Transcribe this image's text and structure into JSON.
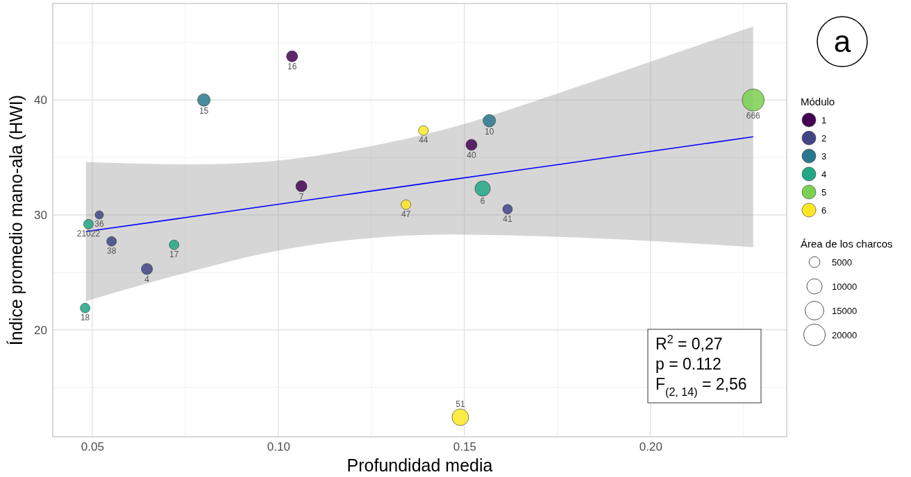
{
  "chart_data": {
    "type": "scatter",
    "xlabel": "Profundidad media",
    "ylabel": "Índice promedio mano-ala (HWI)",
    "legend_title": "Módulo",
    "legend": "right",
    "grid": true,
    "xlim": [
      0.0394,
      0.2366
    ],
    "ylim": [
      10.7,
      48.4
    ],
    "xticks": [
      0.05,
      {
        "value": 0.075,
        "label": null
      },
      {
        "value": 0.1,
        "label": "0.10"
      },
      {
        "value": 0.125,
        "label": null
      },
      0.15,
      {
        "value": 0.175,
        "label": null
      },
      {
        "value": 0.2,
        "label": "0.20"
      },
      {
        "value": 0.225,
        "label": null
      }
    ],
    "yticks": [
      {
        "value": 15,
        "label": null
      },
      20,
      {
        "value": 25,
        "label": null
      },
      30,
      {
        "value": 35,
        "label": null
      },
      40,
      {
        "value": 45,
        "label": null
      }
    ],
    "size_legend": [
      5000,
      10000,
      15000,
      20000
    ],
    "series": [
      {
        "name": "1",
        "color": "#440154",
        "x": [
          0.1037,
          0.1062,
          0.1519
        ],
        "values": [
          43.8,
          32.5,
          36.1
        ],
        "sizes": [
          5300,
          5300,
          5300
        ],
        "marker": "circle"
      },
      {
        "name": "2",
        "color": "#414487",
        "x": [
          0.0519,
          0.0552,
          0.0647,
          0.1616
        ],
        "values": [
          30.0,
          27.7,
          25.3,
          30.5
        ],
        "sizes": [
          3000,
          4000,
          5300,
          4000
        ],
        "marker": "circle"
      },
      {
        "name": "3",
        "color": "#2a788e",
        "x": [
          0.08,
          0.1567
        ],
        "values": [
          40.0,
          38.2
        ],
        "sizes": [
          6700,
          6700
        ],
        "marker": "circle"
      },
      {
        "name": "4",
        "color": "#22a884",
        "x": [
          0.049,
          0.072,
          0.0481,
          0.1549
        ],
        "values": [
          29.2,
          27.4,
          21.9,
          32.3
        ],
        "sizes": [
          4000,
          4000,
          4000,
          10000
        ],
        "marker": "circle"
      },
      {
        "name": "5",
        "color": "#7ad151",
        "x": [
          0.2276
        ],
        "values": [
          40.0
        ],
        "sizes": [
          21000
        ],
        "marker": "circle"
      },
      {
        "name": "6",
        "color": "#fde725",
        "x": [
          0.139,
          0.1343,
          0.1489
        ],
        "values": [
          37.35,
          30.9,
          12.4
        ],
        "sizes": [
          4000,
          4000,
          11900
        ],
        "marker": "circle"
      },
      {
        "type": "line",
        "color": "#0000ff",
        "x": [
          0.0483,
          0.0767,
          0.0953,
          0.1185,
          0.1465,
          0.1744,
          0.2024,
          0.2276
        ],
        "values": [
          28.55,
          29.85,
          30.71,
          31.78,
          33.07,
          34.35,
          35.64,
          36.8
        ],
        "lower": [
          22.5,
          25.1,
          26.6,
          27.8,
          28.3,
          28.1,
          27.7,
          27.2
        ],
        "upper": [
          34.6,
          34.4,
          34.6,
          35.6,
          37.6,
          40.5,
          43.6,
          46.4
        ]
      }
    ],
    "annotations": [
      "a",
      "R$^{2}$ = 0,27",
      "p = 0.112",
      "F$_{(2, 14)}$ = 2,56",
      "Área de los charcos",
      {
        "text": "16",
        "x": 0.1037,
        "y": 43.8
      },
      {
        "text": "15",
        "x": 0.08,
        "y": 40.0
      },
      {
        "text": "7",
        "x": 0.1062,
        "y": 32.5
      },
      {
        "text": "36",
        "x": 0.0519,
        "y": 30.0
      },
      {
        "text": "21022",
        "x": 0.049,
        "y": 29.2
      },
      {
        "text": "38",
        "x": 0.0552,
        "y": 27.7
      },
      {
        "text": "4",
        "x": 0.0647,
        "y": 25.3
      },
      {
        "text": "17",
        "x": 0.072,
        "y": 27.4
      },
      {
        "text": "18",
        "x": 0.0481,
        "y": 21.9
      },
      {
        "text": "44",
        "x": 0.139,
        "y": 37.35
      },
      {
        "text": "40",
        "x": 0.1519,
        "y": 36.1
      },
      {
        "text": "10",
        "x": 0.1567,
        "y": 38.2
      },
      {
        "text": "6",
        "x": 0.1549,
        "y": 32.3
      },
      {
        "text": "41",
        "x": 0.1616,
        "y": 30.5
      },
      {
        "text": "47",
        "x": 0.1343,
        "y": 30.9
      },
      {
        "text": "51",
        "x": 0.1489,
        "y": 12.4
      },
      {
        "text": "666",
        "x": 0.2276,
        "y": 40.0
      }
    ]
  }
}
